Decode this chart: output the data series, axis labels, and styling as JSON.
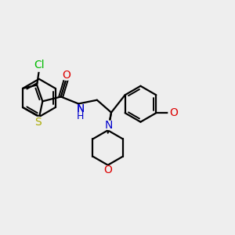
{
  "bg_color": "#eeeeee",
  "bond_color": "#000000",
  "bond_lw": 1.6,
  "dbl_lw": 1.4,
  "atom_colors": {
    "Cl": "#00bb00",
    "S": "#aaaa00",
    "N": "#0000cc",
    "O": "#dd0000",
    "H": "#0000cc"
  },
  "fs": 9.5
}
